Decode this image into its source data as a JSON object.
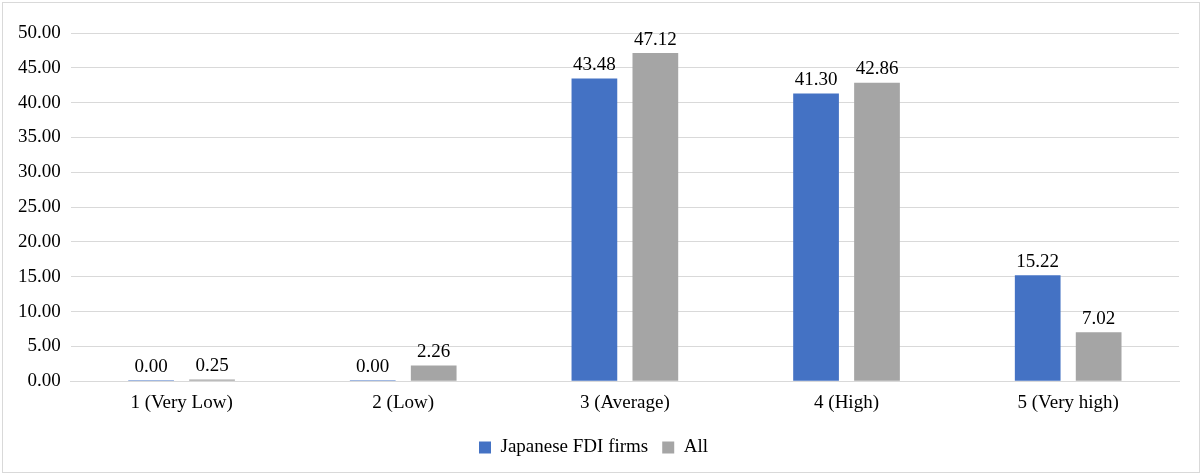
{
  "chart_data": {
    "type": "bar",
    "categories": [
      "1 (Very Low)",
      "2 (Low)",
      "3 (Average)",
      "4 (High)",
      "5 (Very high)"
    ],
    "series": [
      {
        "name": "Japanese FDI firms",
        "color": "#4472c4",
        "values": [
          0,
          0,
          43.48,
          41.3,
          15.22
        ],
        "value_labels": [
          "0.00",
          "0.00",
          "43.48",
          "41.30",
          "15.22"
        ]
      },
      {
        "name": "All",
        "color": "#a5a5a5",
        "values": [
          0.25,
          2.26,
          47.12,
          42.86,
          7.02
        ],
        "value_labels": [
          "0.25",
          "2.26",
          "47.12",
          "42.86",
          "7.02"
        ]
      }
    ],
    "ylim": [
      0,
      50
    ],
    "yticks": [
      {
        "value": 0,
        "label": "0.00"
      },
      {
        "value": 5,
        "label": "5.00"
      },
      {
        "value": 10,
        "label": "10.00"
      },
      {
        "value": 15,
        "label": "15.00"
      },
      {
        "value": 20,
        "label": "20.00"
      },
      {
        "value": 25,
        "label": "25.00"
      },
      {
        "value": 30,
        "label": "30.00"
      },
      {
        "value": 35,
        "label": "35.00"
      },
      {
        "value": 40,
        "label": "40.00"
      },
      {
        "value": 45,
        "label": "45.00"
      },
      {
        "value": 50,
        "label": "50.00"
      }
    ],
    "grid": "y",
    "legend": "bottom"
  }
}
